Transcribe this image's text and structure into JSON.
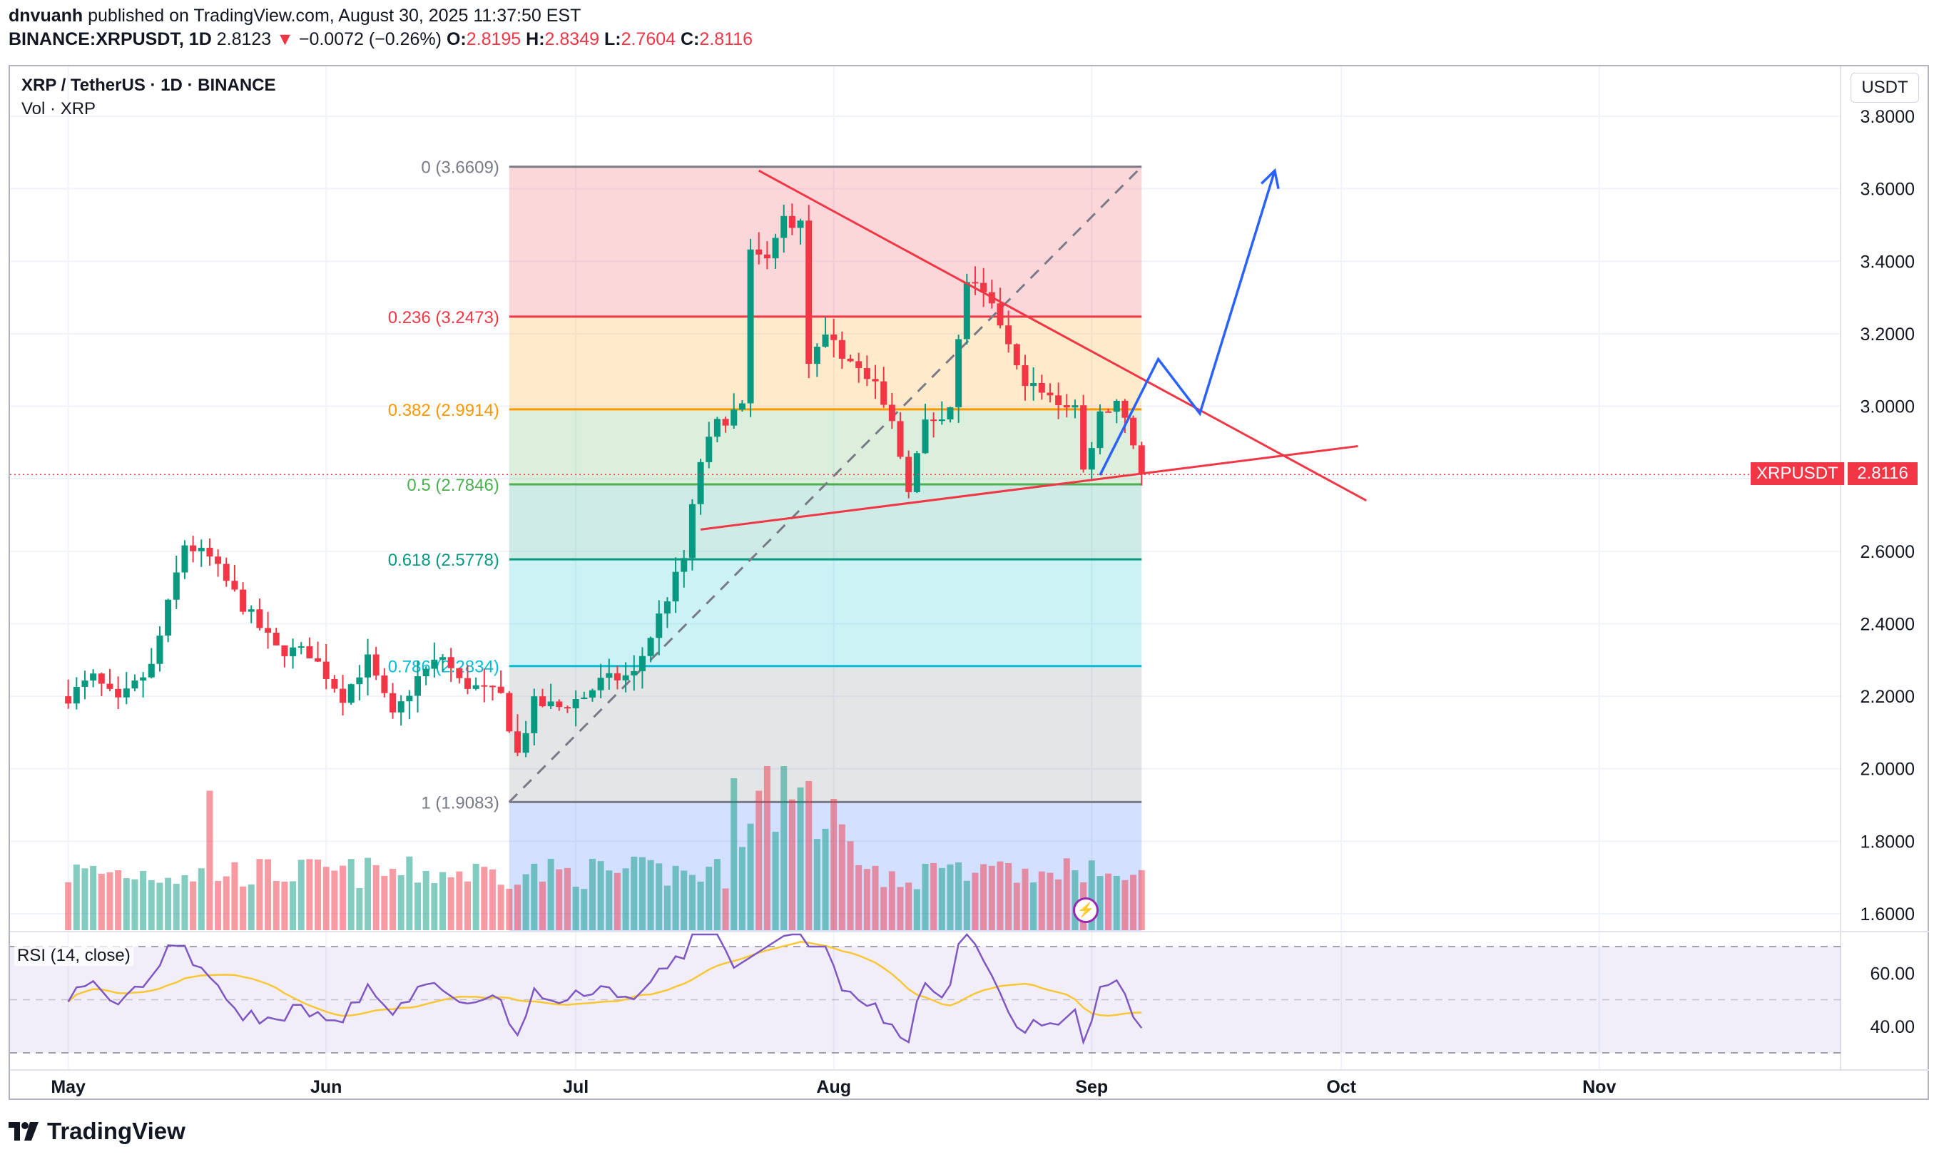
{
  "header": {
    "publisher": "dnvuanh",
    "published_text": "published on TradingView.com, August 30, 2025 11:37:50 EST",
    "symbol": "BINANCE:XRPUSDT, 1D",
    "last": "2.8123",
    "change_arrow": "▼",
    "change": "−0.0072 (−0.26%)",
    "o_label": "O:",
    "o": "2.8195",
    "h_label": "H:",
    "h": "2.8349",
    "l_label": "L:",
    "l": "2.7604",
    "c_label": "C:",
    "c": "2.8116"
  },
  "chart_title": "XRP / TetherUS · 1D · BINANCE",
  "volume_label": "Vol · XRP",
  "currency_button": "USDT",
  "price_tag": {
    "name": "XRPUSDT",
    "value": "2.8116",
    "price": 2.8116,
    "color": "#f23645"
  },
  "rsi_label": "RSI (14, close)",
  "footer_brand": "TradingView",
  "colors": {
    "up": "#089981",
    "down": "#f23645",
    "rsi": "#7e57c2",
    "rsi_ma": "#f9c735",
    "projection": "#2962ff",
    "trendline": "#f23645"
  },
  "chart_data": [
    {
      "type": "candlestick",
      "title": "XRP / TetherUS · 1D · BINANCE",
      "y_axis": {
        "ticks": [
          1.6,
          1.8,
          2.0,
          2.2,
          2.4,
          2.6,
          2.8,
          3.0,
          3.2,
          3.4,
          3.6,
          3.8
        ],
        "tick_labels": [
          "1.6000",
          "1.8000",
          "2.0000",
          "2.2000",
          "2.4000",
          "2.6000",
          "2.8000",
          "3.0000",
          "3.2000",
          "3.4000",
          "3.6000",
          "3.8000"
        ],
        "range": [
          1.55,
          3.8
        ]
      },
      "x_axis": {
        "tick_labels": [
          "May",
          "Jun",
          "Jul",
          "Aug",
          "Sep",
          "Oct",
          "Nov"
        ],
        "tick_days": [
          0,
          31,
          61,
          92,
          123,
          153,
          184
        ],
        "range_days": [
          -7,
          213
        ]
      },
      "grid": true,
      "start_date": "2025-04-24",
      "ohlc": [],
      "fib_levels": [
        {
          "ratio": "0",
          "price": 3.6609,
          "label": "0 (3.6609)",
          "color": "#787b86",
          "fill": "rgba(242,54,69,0.2)"
        },
        {
          "ratio": "0.236",
          "price": 3.2473,
          "label": "0.236 (3.2473)",
          "color": "#f23645",
          "fill": "rgba(255,152,0,0.2)"
        },
        {
          "ratio": "0.382",
          "price": 2.9914,
          "label": "0.382 (2.9914)",
          "color": "#ff9800",
          "fill": "rgba(76,175,80,0.2)"
        },
        {
          "ratio": "0.5",
          "price": 2.7846,
          "label": "0.5 (2.7846)",
          "color": "#4caf50",
          "fill": "rgba(8,153,129,0.2)"
        },
        {
          "ratio": "0.618",
          "price": 2.5778,
          "label": "0.618 (2.5778)",
          "color": "#089981",
          "fill": "rgba(0,188,212,0.2)"
        },
        {
          "ratio": "0.786",
          "price": 2.2834,
          "label": "0.786 (2.2834)",
          "color": "#00bcd4",
          "fill": "rgba(120,123,134,0.2)"
        },
        {
          "ratio": "1",
          "price": 1.9083,
          "label": "1 (1.9083)",
          "color": "#787b86",
          "fill": "rgba(41,98,255,0.2)"
        }
      ],
      "fib_range_days": [
        53,
        129
      ],
      "fib_trend_line": [
        {
          "day": 53,
          "price": 1.9083
        },
        {
          "day": 129,
          "price": 3.6609
        }
      ],
      "trendlines": [
        {
          "name": "resistance",
          "points": [
            {
              "day": 83,
              "price": 3.65
            },
            {
              "day": 156,
              "price": 2.74
            }
          ]
        },
        {
          "name": "support",
          "points": [
            {
              "day": 76,
              "price": 2.66
            },
            {
              "day": 155,
              "price": 2.89
            }
          ]
        }
      ],
      "projection_path": [
        {
          "day": 124,
          "price": 2.81
        },
        {
          "day": 131,
          "price": 3.13
        },
        {
          "day": 136,
          "price": 2.98
        },
        {
          "day": 145,
          "price": 3.65
        }
      ]
    },
    {
      "type": "bar",
      "title": "Vol · XRP",
      "values": []
    },
    {
      "type": "line",
      "title": "RSI (14, close)",
      "y_axis": {
        "ticks": [
          40,
          60
        ],
        "tick_labels": [
          "40.00",
          "60.00"
        ],
        "range": [
          30,
          70
        ],
        "bands": [
          70,
          50,
          30
        ]
      },
      "series": [
        {
          "values": []
        },
        {
          "values": []
        }
      ]
    }
  ]
}
